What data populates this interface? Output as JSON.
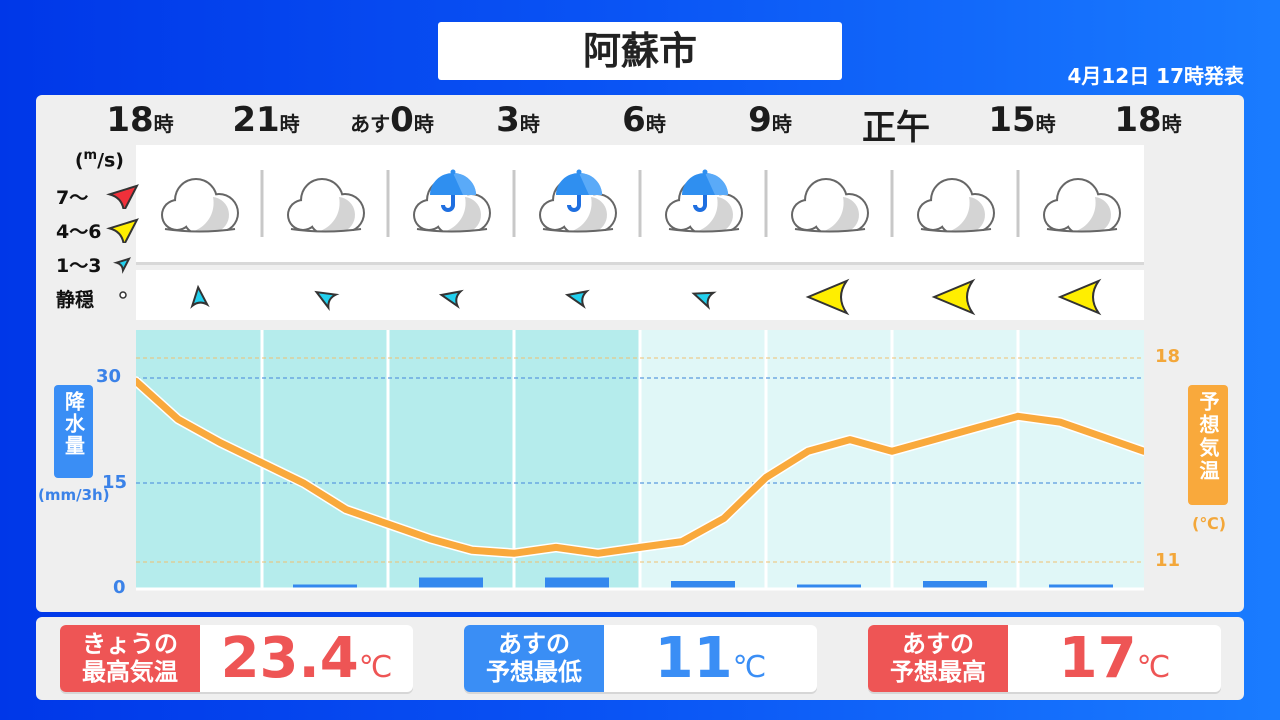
{
  "header": {
    "title": "阿蘇市",
    "issued": "4月12日 17時発表"
  },
  "times": [
    {
      "pre": "",
      "num": "18",
      "suf": "時"
    },
    {
      "pre": "",
      "num": "21",
      "suf": "時"
    },
    {
      "pre": "あす",
      "num": "0",
      "suf": "時"
    },
    {
      "pre": "",
      "num": "3",
      "suf": "時"
    },
    {
      "pre": "",
      "num": "6",
      "suf": "時"
    },
    {
      "pre": "",
      "num": "9",
      "suf": "時"
    },
    {
      "pre": "",
      "num": "正午",
      "suf": ""
    },
    {
      "pre": "",
      "num": "15",
      "suf": "時"
    },
    {
      "pre": "",
      "num": "18",
      "suf": "時"
    }
  ],
  "weather": [
    "cloudy-icon",
    "cloudy-icon",
    "cloudy-rain-umbrella-icon",
    "cloudy-rain-umbrella-icon",
    "cloudy-rain-umbrella-icon",
    "cloudy-icon",
    "cloudy-icon",
    "cloudy-icon"
  ],
  "wind_legend": {
    "unit": "(m/s)",
    "items": [
      {
        "label": "7〜",
        "color": "#f0303a"
      },
      {
        "label": "4〜6",
        "color": "#ffee00"
      },
      {
        "label": "1〜3",
        "color": "#22d0ee"
      },
      {
        "label": "静穏",
        "color": "#ffffff"
      }
    ]
  },
  "wind": [
    {
      "class": "1〜3",
      "direction_deg": -95
    },
    {
      "class": "1〜3",
      "direction_deg": -150
    },
    {
      "class": "1〜3",
      "direction_deg": -168
    },
    {
      "class": "1〜3",
      "direction_deg": -168
    },
    {
      "class": "1〜3",
      "direction_deg": -160
    },
    {
      "class": "4〜6",
      "direction_deg": 180
    },
    {
      "class": "4〜6",
      "direction_deg": 180
    },
    {
      "class": "4〜6",
      "direction_deg": 180
    }
  ],
  "chart_data": {
    "type": "line+bar",
    "precip": {
      "label": "降水量",
      "unit": "(mm/3h)",
      "ticks": [
        "30",
        "15",
        "0"
      ],
      "ylim": [
        0,
        30
      ],
      "values": [
        0,
        0.5,
        1.5,
        1.5,
        1,
        0.5,
        1,
        0.5
      ],
      "color": "#3388ee"
    },
    "temp": {
      "label": "予想気温",
      "unit": "(℃)",
      "ticks": [
        "18",
        "11"
      ],
      "ylim": [
        11,
        18
      ],
      "color": "#f9a93c",
      "values": [
        17.2,
        15.9,
        15.1,
        14.4,
        13.7,
        12.8,
        12.3,
        11.8,
        11.4,
        11.3,
        11.5,
        11.3,
        11.5,
        11.7,
        12.5,
        13.9,
        14.8,
        15.2,
        14.8,
        15.2,
        15.6,
        16.0,
        15.8,
        15.3,
        14.8
      ]
    },
    "shaded_columns": 4,
    "grid": true
  },
  "summary": [
    {
      "label1": "きょうの",
      "label2": "最高気温",
      "value": "23.4",
      "unit": "℃",
      "color": "#ee5555"
    },
    {
      "label1": "あすの",
      "label2": "予想最低",
      "value": "11",
      "unit": "℃",
      "color": "#3a8ef5"
    },
    {
      "label1": "あすの",
      "label2": "予想最高",
      "value": "17",
      "unit": "℃",
      "color": "#ee5555"
    }
  ]
}
